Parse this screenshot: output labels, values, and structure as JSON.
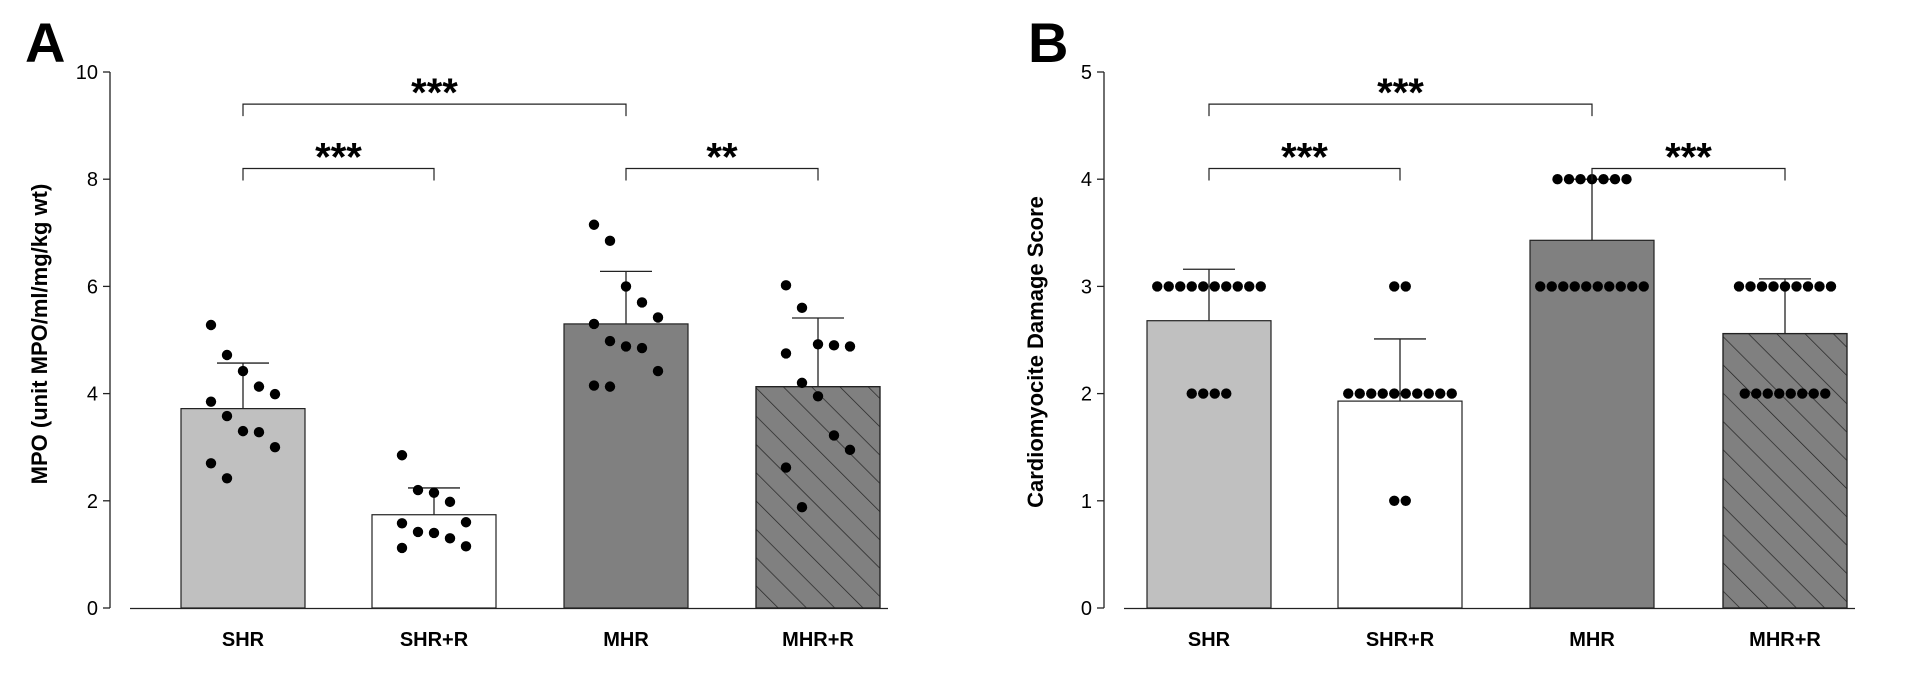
{
  "chart_data": [
    {
      "panel": "A",
      "type": "bar",
      "ylabel": "MPO (unit MPO/ml/mg/kg wt)",
      "xlabel": "",
      "ylim": [
        0,
        10
      ],
      "yticks": [
        0,
        2,
        4,
        6,
        8,
        10
      ],
      "categories": [
        "SHR",
        "SHR+R",
        "MHR",
        "MHR+R"
      ],
      "values": [
        3.72,
        1.74,
        5.3,
        4.13
      ],
      "error_plus": [
        0.85,
        0.5,
        0.98,
        1.28
      ],
      "fills": [
        "#c0c0c0",
        "#ffffff",
        "#808080",
        "#808080"
      ],
      "hatched": [
        false,
        false,
        false,
        true
      ],
      "points": [
        [
          5.28,
          4.72,
          4.42,
          4.13,
          3.99,
          3.85,
          3.58,
          3.3,
          3.28,
          3.0,
          2.7,
          2.42
        ],
        [
          2.85,
          2.2,
          2.15,
          1.98,
          1.6,
          1.58,
          1.42,
          1.4,
          1.3,
          1.15,
          1.12
        ],
        [
          7.15,
          6.85,
          6.0,
          5.7,
          5.42,
          5.3,
          4.98,
          4.88,
          4.85,
          4.42,
          4.15,
          4.13
        ],
        [
          6.02,
          5.6,
          4.92,
          4.9,
          4.88,
          4.75,
          4.2,
          3.95,
          3.22,
          2.95,
          2.62,
          1.88
        ]
      ],
      "comparisons": [
        {
          "from": "SHR",
          "to": "SHR+R",
          "level": 8.2,
          "label": "***"
        },
        {
          "from": "SHR",
          "to": "MHR",
          "level": 9.4,
          "label": "***"
        },
        {
          "from": "MHR",
          "to": "MHR+R",
          "level": 8.2,
          "label": "**"
        }
      ]
    },
    {
      "panel": "B",
      "type": "bar",
      "ylabel": "Cardiomyocite Damage Score",
      "xlabel": "",
      "ylim": [
        0,
        5
      ],
      "yticks": [
        0,
        1,
        2,
        3,
        4,
        5
      ],
      "categories": [
        "SHR",
        "SHR+R",
        "MHR",
        "MHR+R"
      ],
      "values": [
        2.68,
        1.93,
        3.43,
        2.56
      ],
      "error_plus": [
        0.48,
        0.58,
        0.57,
        0.51
      ],
      "fills": [
        "#c0c0c0",
        "#ffffff",
        "#808080",
        "#808080"
      ],
      "hatched": [
        false,
        false,
        false,
        true
      ],
      "points": [
        [
          3,
          3,
          3,
          3,
          3,
          3,
          3,
          3,
          3,
          3,
          2,
          2,
          2,
          2
        ],
        [
          3,
          3,
          2,
          2,
          2,
          2,
          2,
          2,
          2,
          2,
          2,
          2,
          1,
          1
        ],
        [
          4,
          4,
          4,
          4,
          4,
          4,
          4,
          3,
          3,
          3,
          3,
          3,
          3,
          3,
          3,
          3,
          3
        ],
        [
          3,
          3,
          3,
          3,
          3,
          3,
          3,
          3,
          3,
          2,
          2,
          2,
          2,
          2,
          2,
          2,
          2
        ]
      ],
      "comparisons": [
        {
          "from": "SHR",
          "to": "SHR+R",
          "level": 4.1,
          "label": "***"
        },
        {
          "from": "SHR",
          "to": "MHR",
          "level": 4.7,
          "label": "***"
        },
        {
          "from": "MHR",
          "to": "MHR+R",
          "level": 4.1,
          "label": "***"
        }
      ]
    }
  ]
}
